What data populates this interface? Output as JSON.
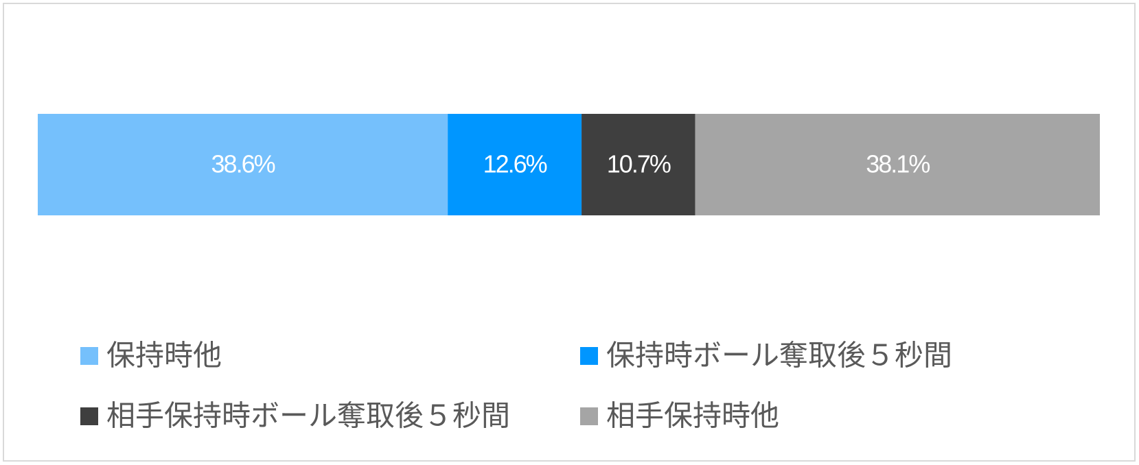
{
  "chart_data": {
    "type": "bar",
    "orientation": "horizontal",
    "stacked": true,
    "categories": [
      null
    ],
    "series": [
      {
        "name": "保持時他",
        "color": "#75c0fc",
        "values": [
          38.6
        ],
        "value_labels": [
          "38.6%"
        ]
      },
      {
        "name": "保持時ボール奪取後５秒間",
        "color": "#0096ff",
        "values": [
          12.6
        ],
        "value_labels": [
          "12.6%"
        ]
      },
      {
        "name": "相手保持時ボール奪取後５秒間",
        "color": "#3f3f3f",
        "values": [
          10.7
        ],
        "value_labels": [
          "10.7%"
        ]
      },
      {
        "name": "相手保持時他",
        "color": "#a5a5a5",
        "values": [
          38.1
        ],
        "value_labels": [
          "38.1%"
        ]
      }
    ],
    "xlim": [
      0,
      100
    ],
    "legend": "bottom"
  }
}
